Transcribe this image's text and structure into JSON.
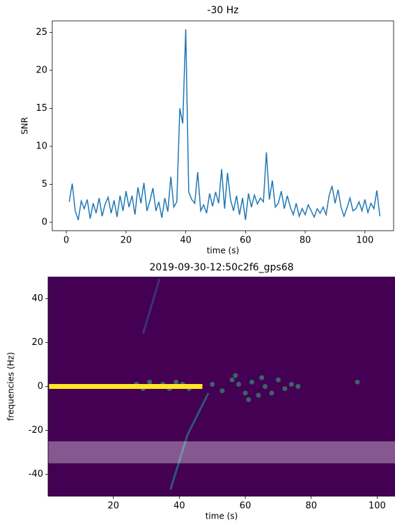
{
  "chart_data": [
    {
      "type": "line",
      "title": "-30 Hz",
      "xlabel": "time (s)",
      "ylabel": "SNR",
      "xlim": [
        -4.7,
        109.6
      ],
      "ylim": [
        -1.1,
        26.5
      ],
      "xticks": [
        0,
        20,
        40,
        60,
        80,
        100
      ],
      "yticks": [
        0,
        5,
        10,
        15,
        20,
        25
      ],
      "series": [
        {
          "color": "#1f77b4",
          "x": [
            1,
            2,
            3,
            4,
            5,
            6,
            7,
            8,
            9,
            10,
            11,
            12,
            13,
            14,
            15,
            16,
            17,
            18,
            19,
            20,
            21,
            22,
            23,
            24,
            25,
            26,
            27,
            28,
            29,
            30,
            31,
            32,
            33,
            34,
            35,
            36,
            37,
            38,
            39,
            40,
            41,
            42,
            43,
            44,
            45,
            46,
            47,
            48,
            49,
            50,
            51,
            52,
            53,
            54,
            55,
            56,
            57,
            58,
            59,
            60,
            61,
            62,
            63,
            64,
            65,
            66,
            67,
            68,
            69,
            70,
            71,
            72,
            73,
            74,
            75,
            76,
            77,
            78,
            79,
            80,
            81,
            82,
            83,
            84,
            85,
            86,
            87,
            88,
            89,
            90,
            91,
            92,
            93,
            94,
            95,
            96,
            97,
            98,
            99,
            100,
            101,
            102,
            103,
            104,
            105
          ],
          "values": [
            2.7,
            5.1,
            1.5,
            0.3,
            2.8,
            1.8,
            3,
            0.5,
            2.5,
            1.2,
            3.2,
            0.8,
            2.4,
            3.3,
            1.2,
            2.9,
            0.7,
            3.5,
            1.5,
            4.1,
            2,
            3.5,
            1,
            4.6,
            2.5,
            5.2,
            1.5,
            2.8,
            4.5,
            1.5,
            2.7,
            0.6,
            3.2,
            1.4,
            6,
            2,
            2.7,
            15,
            13,
            25.4,
            4,
            3,
            2.5,
            6.6,
            1.5,
            2.3,
            1.2,
            3.8,
            2.1,
            4,
            2.5,
            7,
            1.8,
            6.5,
            3,
            1.5,
            3.5,
            1,
            3.2,
            0.3,
            3.8,
            2,
            3.6,
            2.4,
            3.2,
            2.7,
            9.2,
            3,
            5.5,
            2,
            2.5,
            4.1,
            1.8,
            3.5,
            2,
            1,
            2.5,
            0.8,
            1.8,
            1,
            2.3,
            1.5,
            0.7,
            1.8,
            1.2,
            2,
            1,
            3.5,
            4.8,
            2.5,
            4.3,
            2,
            0.8,
            1.9,
            3.2,
            1.5,
            1.8,
            2.7,
            1.5,
            3,
            1.3,
            2.5,
            1.8,
            4.2,
            0.8
          ]
        }
      ]
    },
    {
      "type": "spectrogram",
      "title": "2019-09-30-12:50c2f6_gps68",
      "xlabel": "time (s)",
      "ylabel": "frequencies (Hz)",
      "xlim": [
        0.2,
        105.4
      ],
      "ylim": [
        -50,
        50
      ],
      "xticks": [
        20,
        40,
        60,
        80,
        100
      ],
      "yticks": [
        -40,
        -20,
        0,
        20,
        40
      ],
      "background": "#440154",
      "tracks": [
        {
          "x": [
            0.5,
            47
          ],
          "y": [
            0,
            0
          ],
          "color": "#fde725"
        },
        {
          "x": [
            37.3,
            42.5,
            48.8
          ],
          "y": [
            -47,
            -22,
            -3
          ],
          "color": "#21918c"
        },
        {
          "x": [
            34,
            29
          ],
          "y": [
            49,
            24
          ],
          "color": "#3b528b"
        }
      ],
      "points": {
        "color": "#35b779",
        "x": [
          27,
          29,
          31,
          33,
          35,
          37,
          39,
          41,
          43,
          45,
          50,
          53,
          56,
          58,
          60,
          62,
          64,
          66,
          68,
          70,
          72,
          74,
          76,
          57,
          61,
          65,
          94
        ],
        "y": [
          1,
          -1,
          2,
          0,
          1,
          -1,
          2,
          1,
          -1,
          0,
          1,
          -2,
          3,
          1,
          -3,
          2,
          -4,
          0,
          -3,
          3,
          -1,
          1,
          0,
          5,
          -6,
          4,
          2
        ]
      },
      "band": [
        -35,
        -25
      ],
      "band_color": "#ffffff"
    }
  ]
}
